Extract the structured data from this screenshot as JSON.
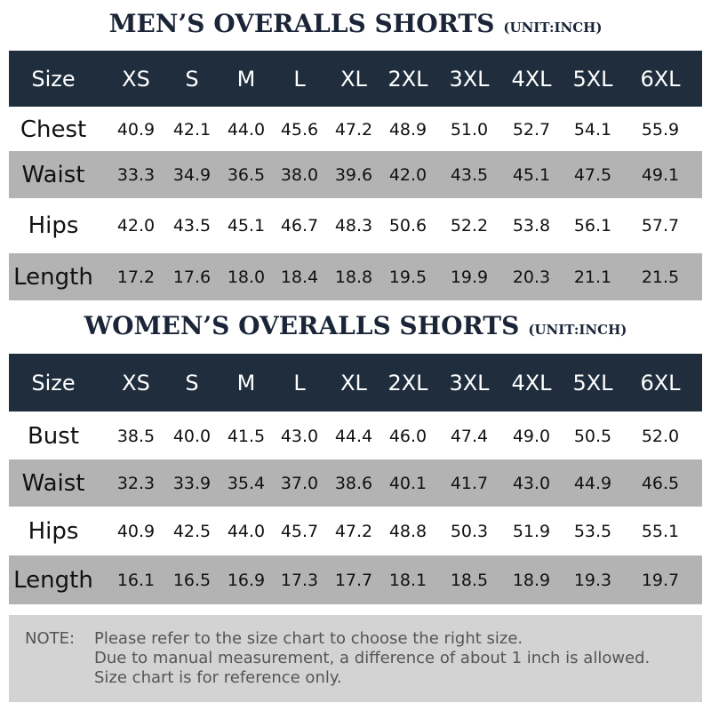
{
  "sections": [
    {
      "title": "MEN’S OVERALLS SHORTS",
      "unit": "(UNIT:INCH)",
      "header": [
        "Size",
        "XS",
        "S",
        "M",
        "L",
        "XL",
        "2XL",
        "3XL",
        "4XL",
        "5XL",
        "6XL"
      ],
      "rows": [
        [
          "Chest",
          "40.9",
          "42.1",
          "44.0",
          "45.6",
          "47.2",
          "48.9",
          "51.0",
          "52.7",
          "54.1",
          "55.9"
        ],
        [
          "Waist",
          "33.3",
          "34.9",
          "36.5",
          "38.0",
          "39.6",
          "42.0",
          "43.5",
          "45.1",
          "47.5",
          "49.1"
        ],
        [
          "Hips",
          "42.0",
          "43.5",
          "45.1",
          "46.7",
          "48.3",
          "50.6",
          "52.2",
          "53.8",
          "56.1",
          "57.7"
        ],
        [
          "Length",
          "17.2",
          "17.6",
          "18.0",
          "18.4",
          "18.8",
          "19.5",
          "19.9",
          "20.3",
          "21.1",
          "21.5"
        ]
      ]
    },
    {
      "title": "WOMEN’S OVERALLS SHORTS",
      "unit": "(UNIT:INCH)",
      "header": [
        "Size",
        "XS",
        "S",
        "M",
        "L",
        "XL",
        "2XL",
        "3XL",
        "4XL",
        "5XL",
        "6XL"
      ],
      "rows": [
        [
          "Bust",
          "38.5",
          "40.0",
          "41.5",
          "43.0",
          "44.4",
          "46.0",
          "47.4",
          "49.0",
          "50.5",
          "52.0"
        ],
        [
          "Waist",
          "32.3",
          "33.9",
          "35.4",
          "37.0",
          "38.6",
          "40.1",
          "41.7",
          "43.0",
          "44.9",
          "46.5"
        ],
        [
          "Hips",
          "40.9",
          "42.5",
          "44.0",
          "45.7",
          "47.2",
          "48.8",
          "50.3",
          "51.9",
          "53.5",
          "55.1"
        ],
        [
          "Length",
          "16.1",
          "16.5",
          "16.9",
          "17.3",
          "17.7",
          "18.1",
          "18.5",
          "18.9",
          "19.3",
          "19.7"
        ]
      ]
    }
  ],
  "note": {
    "label": "NOTE:",
    "lines": [
      "Please refer to the size chart to choose the right size.",
      "Due to manual measurement, a difference of about 1 inch is allowed.",
      "Size chart is for reference only."
    ]
  }
}
